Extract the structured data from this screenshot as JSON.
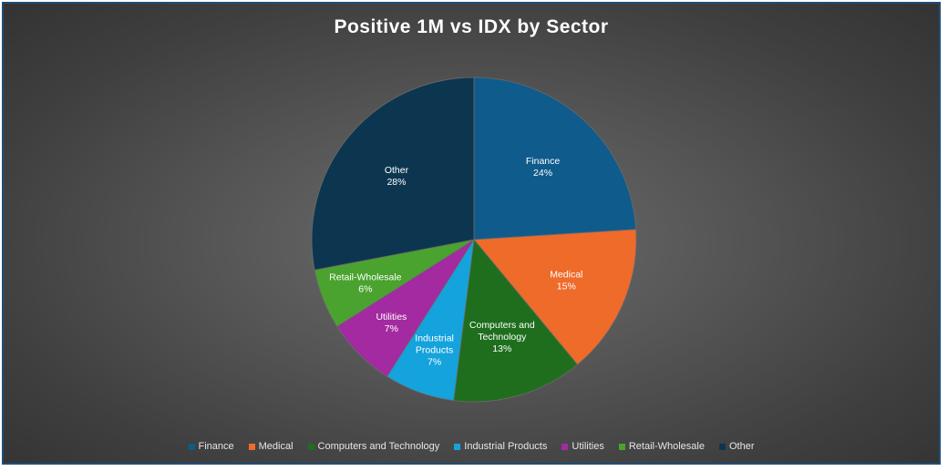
{
  "chart_data": {
    "type": "pie",
    "title": "Positive 1M vs IDX by Sector",
    "slices": [
      {
        "name": "Finance",
        "value": 24,
        "label": "24%",
        "color": "#0f5b8c"
      },
      {
        "name": "Medical",
        "value": 15,
        "label": "15%",
        "color": "#ee6b2a"
      },
      {
        "name": "Computers and Technology",
        "value": 13,
        "label": "13%",
        "color": "#1e6e1e"
      },
      {
        "name": "Industrial Products",
        "value": 7,
        "label": "7%",
        "color": "#14a3dc"
      },
      {
        "name": "Utilities",
        "value": 7,
        "label": "7%",
        "color": "#a32aa0"
      },
      {
        "name": "Retail-Wholesale",
        "value": 6,
        "label": "6%",
        "color": "#4aa32e"
      },
      {
        "name": "Other",
        "value": 28,
        "label": "28%",
        "color": "#0c3650"
      }
    ],
    "legend_position": "bottom"
  }
}
